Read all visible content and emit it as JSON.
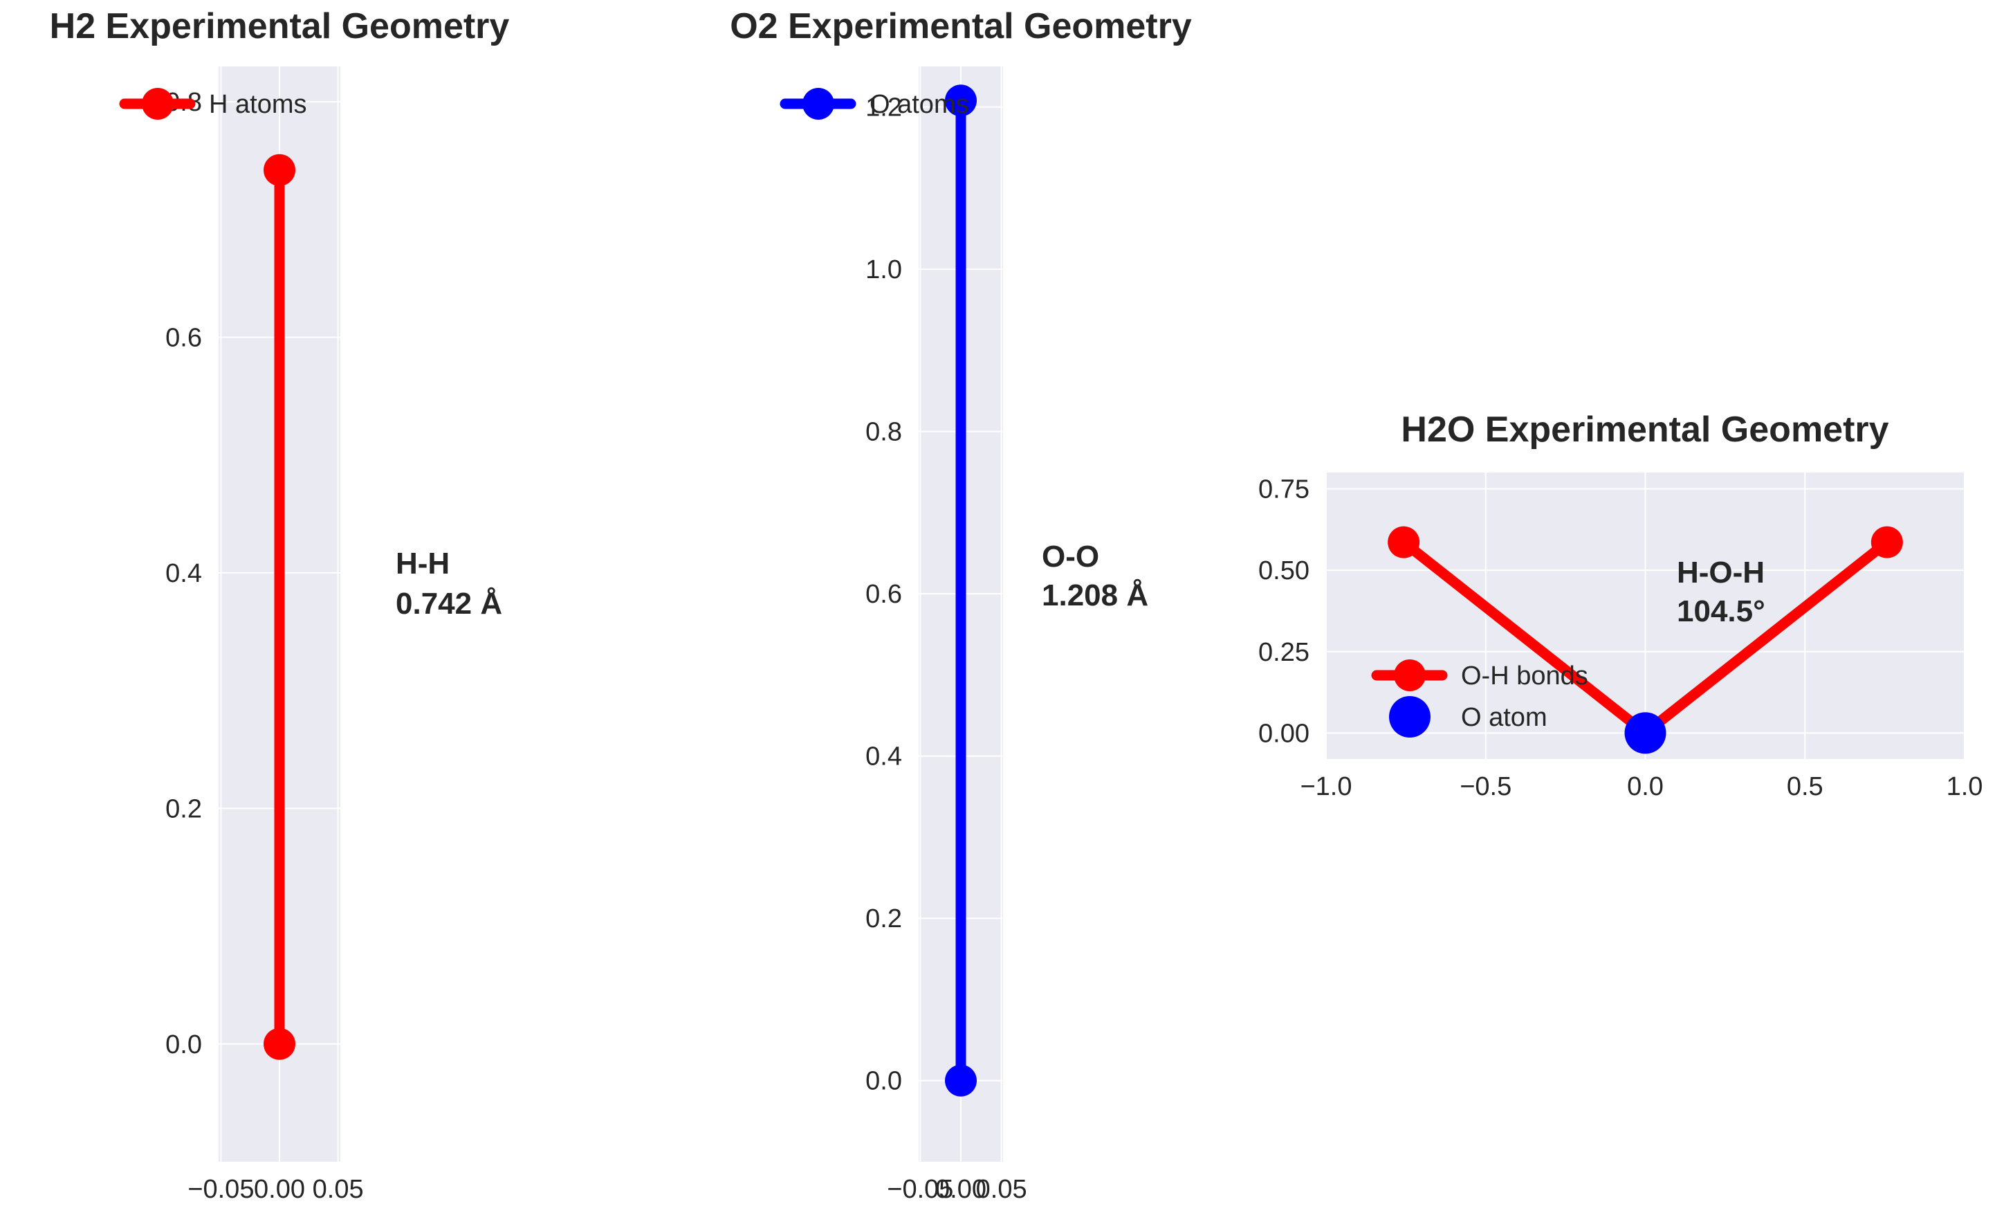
{
  "chart_data": [
    {
      "type": "line",
      "title": "H2 Experimental Geometry",
      "xlabel": "",
      "ylabel": "",
      "xlim": [
        -0.052,
        0.052
      ],
      "ylim": [
        -0.1,
        0.83
      ],
      "xticks": [
        "−0.05",
        "0.00",
        "0.05"
      ],
      "xtick_values": [
        -0.05,
        0.0,
        0.05
      ],
      "yticks": [
        "0.0",
        "0.2",
        "0.4",
        "0.6",
        "0.8"
      ],
      "ytick_values": [
        0.0,
        0.2,
        0.4,
        0.6,
        0.8
      ],
      "grid": true,
      "legend_position": "top-left",
      "series": [
        {
          "name": "H atoms",
          "color": "#ff0000",
          "x": [
            0.0,
            0.0
          ],
          "y": [
            0.0,
            0.742
          ]
        }
      ],
      "annotation": {
        "lines": [
          "H-H",
          "0.742 Å"
        ],
        "x": 0.1,
        "y": 0.39
      }
    },
    {
      "type": "line",
      "title": "O2 Experimental Geometry",
      "xlabel": "",
      "ylabel": "",
      "xlim": [
        -0.052,
        0.052
      ],
      "ylim": [
        -0.1,
        1.25
      ],
      "xticks": [
        "−0.05",
        "0.00",
        "0.05"
      ],
      "xtick_values": [
        -0.05,
        0.0,
        0.05
      ],
      "yticks": [
        "0.0",
        "0.2",
        "0.4",
        "0.6",
        "0.8",
        "1.0",
        "1.2"
      ],
      "ytick_values": [
        0.0,
        0.2,
        0.4,
        0.6,
        0.8,
        1.0,
        1.2
      ],
      "grid": true,
      "legend_position": "top-left",
      "series": [
        {
          "name": "O atoms",
          "color": "#0000ff",
          "x": [
            0.0,
            0.0
          ],
          "y": [
            0.0,
            1.208
          ]
        }
      ],
      "annotation": {
        "lines": [
          "O-O",
          "1.208 Å"
        ],
        "x": 0.1,
        "y": 0.63
      }
    },
    {
      "type": "line",
      "title": "H2O Experimental Geometry",
      "xlabel": "",
      "ylabel": "",
      "xlim": [
        -1.0,
        1.0
      ],
      "ylim": [
        -0.08,
        0.8
      ],
      "xticks": [
        "−1.0",
        "−0.5",
        "0.0",
        "0.5",
        "1.0"
      ],
      "xtick_values": [
        -1.0,
        -0.5,
        0.0,
        0.5,
        1.0
      ],
      "yticks": [
        "0.00",
        "0.25",
        "0.50",
        "0.75"
      ],
      "ytick_values": [
        0.0,
        0.25,
        0.5,
        0.75
      ],
      "grid": true,
      "legend_position": "center-left",
      "series": [
        {
          "name": "O-H bonds",
          "color": "#ff0000",
          "x": [
            -0.757,
            0.0,
            0.757
          ],
          "y": [
            0.586,
            0.0,
            0.586
          ]
        },
        {
          "name": "O atom",
          "color": "#0000ff",
          "x": [
            0.0
          ],
          "y": [
            0.0
          ]
        }
      ],
      "annotation": {
        "lines": [
          "H-O-H",
          "104.5°"
        ],
        "x": 0.1,
        "y": 0.38
      }
    }
  ]
}
